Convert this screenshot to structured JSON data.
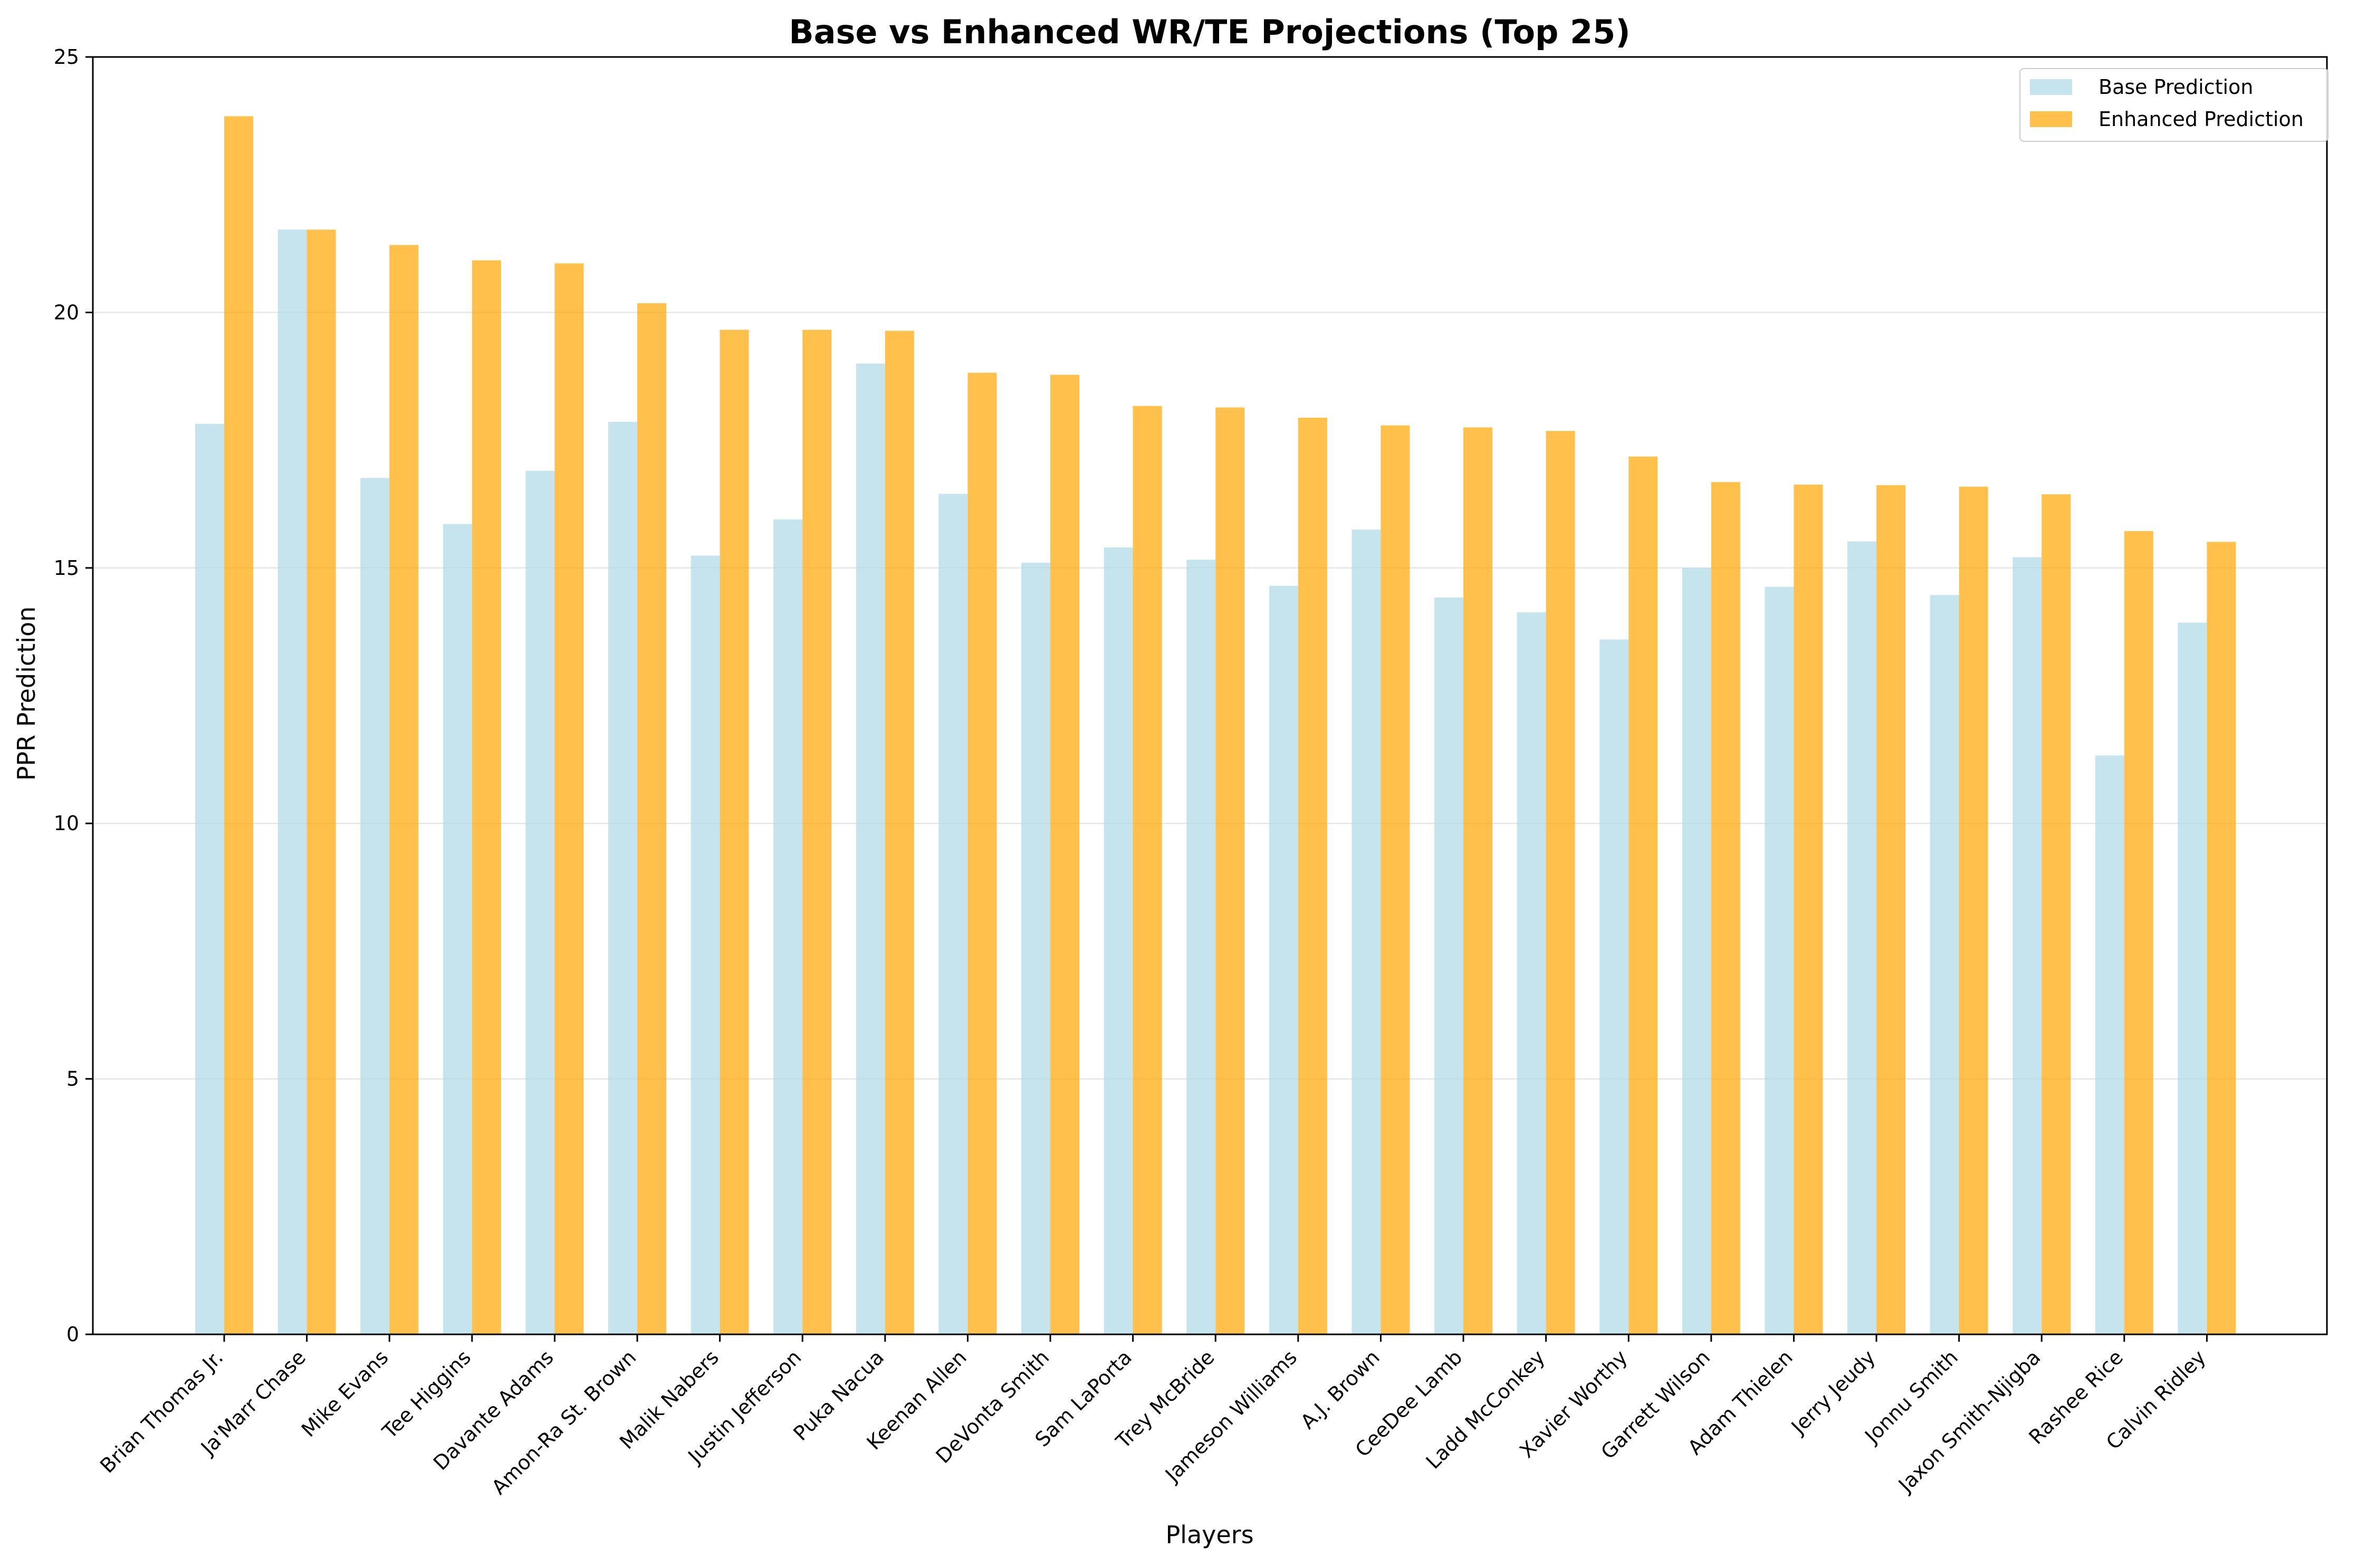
{
  "chart_data": {
    "type": "bar",
    "title": "Base vs Enhanced WR/TE Projections (Top 25)",
    "xlabel": "Players",
    "ylabel": "PPR Prediction",
    "ylim": [
      0,
      25
    ],
    "yticks": [
      0,
      5,
      10,
      15,
      20,
      25
    ],
    "grid": "y",
    "legend_position": "top-right",
    "categories": [
      "Brian Thomas Jr.",
      "Ja'Marr Chase",
      "Mike Evans",
      "Tee Higgins",
      "Davante Adams",
      "Amon-Ra St. Brown",
      "Malik Nabers",
      "Justin Jefferson",
      "Puka Nacua",
      "Keenan Allen",
      "DeVonta Smith",
      "Sam LaPorta",
      "Trey McBride",
      "Jameson Williams",
      "A.J. Brown",
      "CeeDee Lamb",
      "Ladd McConkey",
      "Xavier Worthy",
      "Garrett Wilson",
      "Adam Thielen",
      "Jerry Jeudy",
      "Jonnu Smith",
      "Jaxon Smith-Njigba",
      "Rashee Rice",
      "Calvin Ridley"
    ],
    "series": [
      {
        "name": "Base Prediction",
        "color": "#add8e6",
        "values": [
          17.82,
          21.62,
          16.76,
          15.86,
          16.9,
          17.86,
          15.24,
          15.95,
          19.0,
          16.45,
          15.1,
          15.4,
          15.16,
          14.65,
          15.75,
          14.42,
          14.13,
          13.6,
          15.0,
          14.63,
          15.52,
          14.47,
          15.21,
          11.33,
          13.93
        ]
      },
      {
        "name": "Enhanced Prediction",
        "color": "#ffa500",
        "values": [
          23.84,
          21.62,
          21.32,
          21.02,
          20.96,
          20.18,
          19.66,
          19.66,
          19.64,
          18.82,
          18.78,
          18.17,
          18.14,
          17.94,
          17.79,
          17.75,
          17.68,
          17.18,
          16.68,
          16.63,
          16.62,
          16.59,
          16.44,
          15.72,
          15.51
        ]
      }
    ]
  }
}
